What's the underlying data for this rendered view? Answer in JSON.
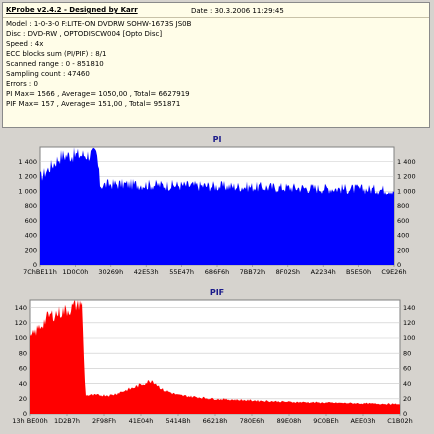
{
  "header": {
    "title": "KProbe v2.4.2 - Designed by Karr",
    "date": "Date : 30.3.2006 11:29:45",
    "lines": [
      "Model : 1-0-3-0 F:LITE-ON DVDRW SOHW-1673S JS0B",
      "Disc : DVD-RW , OPTODISCW004 [Opto Disc]",
      "Speed : 4x",
      "ECC blocks sum (PI/PIF) : 8/1",
      "Scanned range : 0 - 851810",
      "Sampling count : 47460",
      "Errors : 0",
      "PI Max= 1566 , Average= 1050,00 , Total= 6627919",
      "PIF Max= 157 , Average= 151,00 , Total= 951871"
    ]
  },
  "charts": {
    "pi": {
      "label": "PI"
    },
    "pif": {
      "label": "PIF"
    }
  },
  "chart_data": [
    {
      "type": "area",
      "title": "PI",
      "color": "#0000ff",
      "background": "#ffffff",
      "grid": true,
      "ylim": [
        0,
        1600
      ],
      "y_ticks": [
        "0",
        "200",
        "400",
        "600",
        "800",
        "1 000",
        "1 200",
        "1 400"
      ],
      "y_tick_values": [
        0,
        200,
        400,
        600,
        800,
        1000,
        1200,
        1400
      ],
      "x_ticks": [
        "7ChBE11h",
        "1D0C0h",
        "30269h",
        "42E53h",
        "55E47h",
        "686F6h",
        "7BB72h",
        "8F02Sh",
        "A2234h",
        "B5E50h",
        "C9E26h"
      ],
      "x": [
        0.0,
        0.06,
        0.12,
        0.16,
        0.17,
        0.2,
        0.3,
        0.4,
        0.5,
        0.6,
        0.7,
        0.8,
        0.9,
        1.0
      ],
      "values": [
        1200,
        1500,
        1510,
        1520,
        1090,
        1110,
        1100,
        1090,
        1080,
        1070,
        1060,
        1050,
        1040,
        1030
      ]
    },
    {
      "type": "area",
      "title": "PIF",
      "color": "#ff0000",
      "background": "#ffffff",
      "grid": true,
      "ylim": [
        0,
        150
      ],
      "y_ticks": [
        "0",
        "20",
        "40",
        "60",
        "80",
        "100",
        "120",
        "140"
      ],
      "y_tick_values": [
        0,
        20,
        40,
        60,
        80,
        100,
        120,
        140
      ],
      "x_ticks": [
        "13h BE00h",
        "1D2B7h",
        "2F98Fh",
        "41E04h",
        "5414Bh",
        "66218h",
        "780E6h",
        "89E08h",
        "9C0BEh",
        "AEE03h",
        "C1B02h"
      ],
      "x": [
        0.0,
        0.05,
        0.11,
        0.14,
        0.15,
        0.22,
        0.28,
        0.33,
        0.36,
        0.4,
        0.5,
        0.6,
        0.7,
        0.8,
        0.9,
        1.0
      ],
      "values": [
        100,
        130,
        140,
        150,
        25,
        25,
        35,
        45,
        32,
        25,
        20,
        18,
        16,
        15,
        14,
        13
      ]
    }
  ]
}
